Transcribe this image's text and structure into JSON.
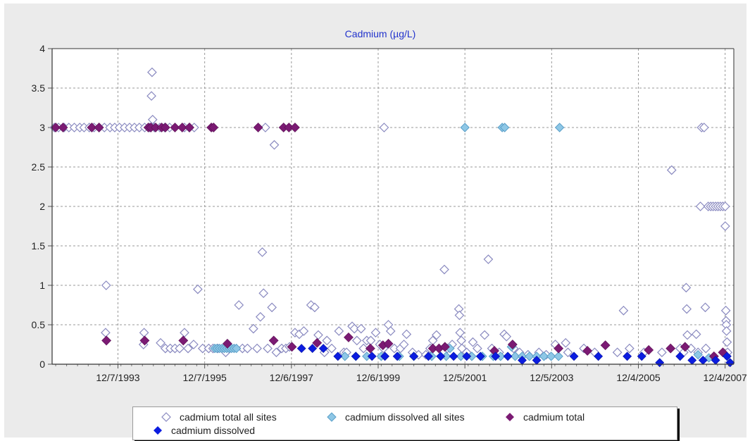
{
  "chart_data": {
    "type": "scatter",
    "title": "Cadmium (µg/L)",
    "xlabel": "",
    "ylabel": "",
    "x_is_date": true,
    "xlim": [
      "1992-06-01",
      "2008-02-15"
    ],
    "ylim": [
      0,
      4
    ],
    "y_ticks": [
      "0",
      "0.5",
      "1",
      "1.5",
      "2",
      "2.5",
      "3",
      "3.5",
      "4"
    ],
    "x_ticks": [
      {
        "date": "1993-12-07",
        "label": "12/7/1993"
      },
      {
        "date": "1995-12-07",
        "label": "12/7/1995"
      },
      {
        "date": "1997-12-06",
        "label": "12/6/1997"
      },
      {
        "date": "1999-12-06",
        "label": "12/6/1999"
      },
      {
        "date": "2001-12-05",
        "label": "12/5/2001"
      },
      {
        "date": "2003-12-05",
        "label": "12/5/2003"
      },
      {
        "date": "2005-12-04",
        "label": "12/4/2005"
      },
      {
        "date": "2007-12-04",
        "label": "12/4/2007"
      }
    ],
    "grid": true,
    "legend_position": "bottom",
    "series": [
      {
        "name": "cadmium total all sites",
        "color": "#c8c8e8",
        "points": [
          [
            "1992-06-20",
            3
          ],
          [
            "1992-07-25",
            3
          ],
          [
            "1992-09-10",
            3
          ],
          [
            "1992-10-20",
            3
          ],
          [
            "1992-12-05",
            3
          ],
          [
            "1993-01-20",
            3
          ],
          [
            "1993-02-25",
            3
          ],
          [
            "1993-04-10",
            3
          ],
          [
            "1993-05-20",
            3
          ],
          [
            "1993-07-01",
            3
          ],
          [
            "1993-08-15",
            3
          ],
          [
            "1993-10-01",
            3
          ],
          [
            "1993-11-10",
            3
          ],
          [
            "1993-12-20",
            3
          ],
          [
            "1994-02-01",
            3
          ],
          [
            "1994-03-15",
            3
          ],
          [
            "1994-04-25",
            3
          ],
          [
            "1994-06-05",
            3
          ],
          [
            "1994-07-20",
            3
          ],
          [
            "1994-09-01",
            3
          ],
          [
            "1994-10-10",
            3
          ],
          [
            "1994-11-25",
            3
          ],
          [
            "1995-01-05",
            3
          ],
          [
            "1995-02-15",
            3
          ],
          [
            "1995-06-20",
            3
          ],
          [
            "1995-07-30",
            3
          ],
          [
            "1995-09-10",
            3
          ],
          [
            "1997-05-01",
            3
          ],
          [
            "1993-08-30",
            1
          ],
          [
            "1993-08-25",
            0.4
          ],
          [
            "1994-07-15",
            0.4
          ],
          [
            "1994-07-10",
            0.25
          ],
          [
            "1994-09-20",
            3.7
          ],
          [
            "1994-09-15",
            3.4
          ],
          [
            "1994-09-25",
            3.1
          ],
          [
            "1994-12-01",
            0.27
          ],
          [
            "1995-01-10",
            0.2
          ],
          [
            "1995-02-20",
            0.2
          ],
          [
            "1995-04-01",
            0.2
          ],
          [
            "1995-05-10",
            0.2
          ],
          [
            "1995-06-20",
            0.4
          ],
          [
            "1995-07-20",
            0.2
          ],
          [
            "1995-09-05",
            0.25
          ],
          [
            "1995-10-10",
            0.95
          ],
          [
            "1995-11-20",
            0.2
          ],
          [
            "1996-01-10",
            0.2
          ],
          [
            "1996-02-15",
            0.2
          ],
          [
            "1996-03-25",
            0.2
          ],
          [
            "1996-06-01",
            0.15
          ],
          [
            "1996-07-01",
            0.2
          ],
          [
            "1996-09-20",
            0.75
          ],
          [
            "1996-10-20",
            0.2
          ],
          [
            "1996-12-01",
            0.2
          ],
          [
            "1997-01-20",
            0.45
          ],
          [
            "1997-02-20",
            0.2
          ],
          [
            "1997-03-20",
            0.6
          ],
          [
            "1997-04-05",
            1.42
          ],
          [
            "1997-04-15",
            0.9
          ],
          [
            "1997-05-20",
            0.2
          ],
          [
            "1997-06-25",
            0.72
          ],
          [
            "1997-07-15",
            2.78
          ],
          [
            "1997-08-01",
            0.15
          ],
          [
            "1997-09-15",
            0.2
          ],
          [
            "1997-10-20",
            0.2
          ],
          [
            "1997-11-20",
            0.22
          ],
          [
            "1998-01-05",
            0.4
          ],
          [
            "1998-02-10",
            0.38
          ],
          [
            "1998-03-20",
            0.42
          ],
          [
            "1998-05-20",
            0.75
          ],
          [
            "1998-06-20",
            0.72
          ],
          [
            "1998-07-20",
            0.37
          ],
          [
            "1998-09-10",
            0.15
          ],
          [
            "1998-10-01",
            0.3
          ],
          [
            "1998-11-10",
            0.2
          ],
          [
            "1999-01-10",
            0.42
          ],
          [
            "1999-02-20",
            0.15
          ],
          [
            "1999-03-15",
            0.15
          ],
          [
            "1999-05-01",
            0.48
          ],
          [
            "1999-05-20",
            0.45
          ],
          [
            "1999-06-10",
            0.3
          ],
          [
            "1999-07-15",
            0.45
          ],
          [
            "1999-08-05",
            0.2
          ],
          [
            "1999-09-01",
            0.3
          ],
          [
            "1999-10-05",
            0.3
          ],
          [
            "1999-11-15",
            0.4
          ],
          [
            "1999-12-20",
            0.25
          ],
          [
            "2000-01-20",
            0.2
          ],
          [
            "2000-03-01",
            0.5
          ],
          [
            "2000-03-20",
            0.42
          ],
          [
            "2000-04-20",
            0.2
          ],
          [
            "2000-06-10",
            0.2
          ],
          [
            "2000-07-10",
            0.25
          ],
          [
            "2000-08-01",
            0.38
          ],
          [
            "2000-01-25",
            3
          ],
          [
            "2000-09-20",
            0.15
          ],
          [
            "2000-11-10",
            0.12
          ],
          [
            "2001-01-10",
            0.12
          ],
          [
            "2001-02-15",
            0.2
          ],
          [
            "2001-03-10",
            0.3
          ],
          [
            "2001-04-10",
            0.37
          ],
          [
            "2001-06-15",
            1.2
          ],
          [
            "2001-07-10",
            0.2
          ],
          [
            "2001-08-20",
            0.25
          ],
          [
            "2001-10-15",
            0.7
          ],
          [
            "2001-10-20",
            0.62
          ],
          [
            "2001-10-25",
            0.4
          ],
          [
            "2001-11-05",
            0.3
          ],
          [
            "2001-11-10",
            0.2
          ],
          [
            "2001-12-20",
            0.15
          ],
          [
            "2002-02-10",
            0.28
          ],
          [
            "2002-03-20",
            0.2
          ],
          [
            "2002-05-20",
            0.37
          ],
          [
            "2002-06-20",
            1.33
          ],
          [
            "2002-07-20",
            0.2
          ],
          [
            "2002-09-20",
            0.15
          ],
          [
            "2002-11-01",
            0.38
          ],
          [
            "2002-11-20",
            0.35
          ],
          [
            "2003-01-20",
            0.2
          ],
          [
            "2003-03-10",
            0.15
          ],
          [
            "2003-05-20",
            0.12
          ],
          [
            "2003-08-20",
            0.15
          ],
          [
            "2003-10-20",
            0.12
          ],
          [
            "2004-01-05",
            0.25
          ],
          [
            "2004-04-01",
            0.27
          ],
          [
            "2004-04-20",
            0.15
          ],
          [
            "2004-09-01",
            0.2
          ],
          [
            "2004-12-01",
            0.15
          ],
          [
            "2005-06-10",
            0.15
          ],
          [
            "2005-08-01",
            0.68
          ],
          [
            "2005-09-20",
            0.2
          ],
          [
            "2006-01-20",
            0.15
          ],
          [
            "2006-06-20",
            0.15
          ],
          [
            "2006-09-10",
            2.46
          ],
          [
            "2006-11-20",
            0.2
          ],
          [
            "2006-12-20",
            0.15
          ],
          [
            "2007-01-10",
            0.97
          ],
          [
            "2007-01-15",
            0.7
          ],
          [
            "2007-01-20",
            0.37
          ],
          [
            "2007-02-20",
            0.2
          ],
          [
            "2007-04-05",
            0.38
          ],
          [
            "2007-04-20",
            0.15
          ],
          [
            "2007-05-10",
            2
          ],
          [
            "2007-05-20",
            3
          ],
          [
            "2007-06-10",
            3
          ],
          [
            "2007-06-20",
            0.72
          ],
          [
            "2007-06-25",
            0.2
          ],
          [
            "2007-07-15",
            2
          ],
          [
            "2007-08-05",
            2
          ],
          [
            "2007-08-25",
            2
          ],
          [
            "2007-09-15",
            2
          ],
          [
            "2007-10-05",
            2
          ],
          [
            "2007-10-25",
            2
          ],
          [
            "2007-11-15",
            2
          ],
          [
            "2007-12-05",
            2
          ],
          [
            "2007-12-05",
            1.75
          ],
          [
            "2007-12-10",
            0.68
          ],
          [
            "2007-12-12",
            0.55
          ],
          [
            "2007-12-14",
            0.5
          ],
          [
            "2007-12-16",
            0.42
          ],
          [
            "2007-12-20",
            0.28
          ],
          [
            "2007-12-25",
            0.15
          ]
        ]
      },
      {
        "name": "cadmium dissolved all sites",
        "color": "#8ec7e6",
        "points": [
          [
            "1996-03-01",
            0.2
          ],
          [
            "1996-03-20",
            0.2
          ],
          [
            "1996-04-10",
            0.2
          ],
          [
            "1996-05-01",
            0.2
          ],
          [
            "1996-05-20",
            0.2
          ],
          [
            "1996-06-10",
            0.2
          ],
          [
            "1996-07-01",
            0.2
          ],
          [
            "1996-07-20",
            0.2
          ],
          [
            "1996-08-10",
            0.2
          ],
          [
            "1996-08-30",
            0.2
          ],
          [
            "2001-12-05",
            3
          ],
          [
            "2002-10-15",
            3
          ],
          [
            "2002-11-05",
            3
          ],
          [
            "2004-02-10",
            3
          ],
          [
            "1999-03-01",
            0.1
          ],
          [
            "1999-06-01",
            0.1
          ],
          [
            "1999-09-01",
            0.1
          ],
          [
            "2000-01-01",
            0.1
          ],
          [
            "2000-06-01",
            0.1
          ],
          [
            "2000-10-01",
            0.1
          ],
          [
            "2001-03-01",
            0.1
          ],
          [
            "2001-07-01",
            0.1
          ],
          [
            "2001-11-01",
            0.1
          ],
          [
            "2002-02-01",
            0.1
          ],
          [
            "2002-05-01",
            0.1
          ],
          [
            "2002-08-01",
            0.1
          ],
          [
            "2002-10-01",
            0.1
          ],
          [
            "2003-01-01",
            0.22
          ],
          [
            "2003-02-01",
            0.1
          ],
          [
            "2003-04-01",
            0.1
          ],
          [
            "2003-06-01",
            0.1
          ],
          [
            "2003-08-01",
            0.1
          ],
          [
            "2003-10-01",
            0.1
          ],
          [
            "2003-12-01",
            0.1
          ],
          [
            "2004-02-01",
            0.1
          ],
          [
            "2001-08-01",
            0.2
          ],
          [
            "2007-04-20",
            0.12
          ],
          [
            "2007-07-20",
            0.08
          ]
        ]
      },
      {
        "name": "cadmium total",
        "color": "#7b1a73",
        "points": [
          [
            "1992-07-01",
            3
          ],
          [
            "1992-09-01",
            3
          ],
          [
            "1993-05-01",
            3
          ],
          [
            "1993-07-01",
            3
          ],
          [
            "1994-08-20",
            3
          ],
          [
            "1994-09-10",
            3
          ],
          [
            "1994-10-20",
            3
          ],
          [
            "1994-12-10",
            3
          ],
          [
            "1995-01-10",
            3
          ],
          [
            "1995-04-01",
            3
          ],
          [
            "1995-06-01",
            3
          ],
          [
            "1995-08-01",
            3
          ],
          [
            "1996-02-01",
            3
          ],
          [
            "1996-02-20",
            3
          ],
          [
            "1997-03-01",
            3
          ],
          [
            "1997-10-01",
            3
          ],
          [
            "1997-11-15",
            3
          ],
          [
            "1998-01-05",
            3
          ],
          [
            "1993-09-01",
            0.3
          ],
          [
            "1994-07-20",
            0.3
          ],
          [
            "1995-06-10",
            0.3
          ],
          [
            "1996-06-15",
            0.26
          ],
          [
            "1997-07-10",
            0.3
          ],
          [
            "1997-12-10",
            0.22
          ],
          [
            "1998-07-10",
            0.27
          ],
          [
            "1999-04-01",
            0.34
          ],
          [
            "1999-10-01",
            0.2
          ],
          [
            "2000-01-15",
            0.24
          ],
          [
            "2000-03-01",
            0.26
          ],
          [
            "2001-03-10",
            0.2
          ],
          [
            "2001-05-01",
            0.2
          ],
          [
            "2001-06-20",
            0.22
          ],
          [
            "2002-08-10",
            0.17
          ],
          [
            "2003-01-10",
            0.25
          ],
          [
            "2004-02-01",
            0.2
          ],
          [
            "2004-10-01",
            0.17
          ],
          [
            "2005-03-01",
            0.24
          ],
          [
            "2006-03-01",
            0.18
          ],
          [
            "2006-09-01",
            0.2
          ],
          [
            "2007-01-01",
            0.22
          ],
          [
            "2007-09-01",
            0.1
          ],
          [
            "2007-11-15",
            0.15
          ]
        ]
      },
      {
        "name": "cadmium dissolved",
        "color": "#0b1ce0",
        "points": [
          [
            "1998-03-01",
            0.2
          ],
          [
            "1998-06-01",
            0.2
          ],
          [
            "1998-09-01",
            0.2
          ],
          [
            "1999-01-01",
            0.1
          ],
          [
            "1999-06-01",
            0.1
          ],
          [
            "1999-10-15",
            0.1
          ],
          [
            "2000-02-01",
            0.1
          ],
          [
            "2000-05-15",
            0.1
          ],
          [
            "2000-10-01",
            0.1
          ],
          [
            "2001-02-01",
            0.1
          ],
          [
            "2001-05-15",
            0.1
          ],
          [
            "2001-09-01",
            0.1
          ],
          [
            "2001-12-20",
            0.1
          ],
          [
            "2002-04-15",
            0.1
          ],
          [
            "2002-08-20",
            0.1
          ],
          [
            "2002-12-01",
            0.1
          ],
          [
            "2003-04-01",
            0.05
          ],
          [
            "2003-08-01",
            0.05
          ],
          [
            "2004-06-10",
            0.1
          ],
          [
            "2005-01-01",
            0.1
          ],
          [
            "2005-09-01",
            0.1
          ],
          [
            "2006-01-01",
            0.1
          ],
          [
            "2006-06-01",
            0.02
          ],
          [
            "2006-11-20",
            0.1
          ],
          [
            "2007-03-01",
            0.05
          ],
          [
            "2007-06-01",
            0.05
          ],
          [
            "2007-09-15",
            0.05
          ],
          [
            "2007-12-20",
            0.1
          ],
          [
            "2008-01-15",
            0.02
          ]
        ]
      }
    ]
  }
}
